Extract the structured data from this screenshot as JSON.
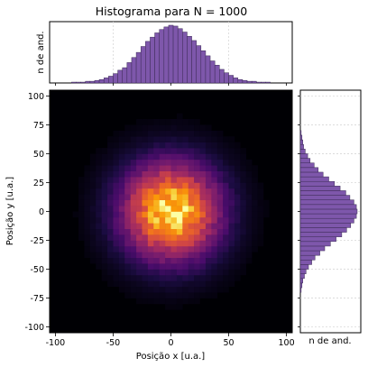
{
  "chart_data": [
    {
      "type": "bar",
      "panel": "top-histogram",
      "title": "Histograma para N = 1000",
      "xlabel": "",
      "ylabel": "n de and.",
      "color": "#7e57ab",
      "xlim": [
        -105,
        105
      ],
      "grid": true,
      "x": [
        -84,
        -80,
        -76,
        -72,
        -68,
        -64,
        -60,
        -56,
        -52,
        -48,
        -44,
        -40,
        -36,
        -32,
        -28,
        -24,
        -20,
        -16,
        -12,
        -8,
        -4,
        0,
        4,
        8,
        12,
        16,
        20,
        24,
        28,
        32,
        36,
        40,
        44,
        48,
        52,
        56,
        60,
        64,
        68,
        72,
        76,
        80,
        84
      ],
      "values": [
        1,
        1,
        1,
        2,
        2,
        3,
        4,
        6,
        8,
        11,
        15,
        18,
        24,
        30,
        36,
        43,
        49,
        54,
        59,
        63,
        66,
        68,
        67,
        64,
        60,
        55,
        50,
        44,
        38,
        32,
        26,
        21,
        16,
        12,
        9,
        6,
        4,
        3,
        2,
        2,
        1,
        1,
        1
      ]
    },
    {
      "type": "heatmap",
      "panel": "main-2d-histogram",
      "xlabel": "Posição x [u.a.]",
      "ylabel": "Posição y [u.a.]",
      "xlim": [
        -105,
        105
      ],
      "ylim": [
        -105,
        105
      ],
      "xticks": [
        -100,
        -50,
        0,
        50,
        100
      ],
      "yticks": [
        100,
        75,
        50,
        25,
        0,
        -25,
        -50,
        -75,
        -100
      ],
      "colormap": "inferno",
      "center": [
        0,
        0
      ],
      "spread_sigma": 25
    },
    {
      "type": "bar",
      "orientation": "horizontal",
      "panel": "right-histogram",
      "xlabel": "n de and.",
      "ylabel": "",
      "color": "#7e57ab",
      "ylim": [
        -105,
        105
      ],
      "grid": true,
      "y": [
        -68,
        -64,
        -60,
        -56,
        -52,
        -48,
        -44,
        -40,
        -36,
        -32,
        -28,
        -24,
        -20,
        -16,
        -12,
        -8,
        -4,
        0,
        4,
        8,
        12,
        16,
        20,
        24,
        28,
        32,
        36,
        40,
        44,
        48,
        52,
        56,
        60,
        64,
        68
      ],
      "values": [
        1,
        2,
        3,
        5,
        7,
        10,
        14,
        18,
        24,
        30,
        37,
        44,
        51,
        57,
        62,
        66,
        69,
        70,
        69,
        66,
        61,
        56,
        49,
        42,
        35,
        28,
        22,
        17,
        12,
        9,
        6,
        4,
        3,
        2,
        1
      ]
    }
  ]
}
